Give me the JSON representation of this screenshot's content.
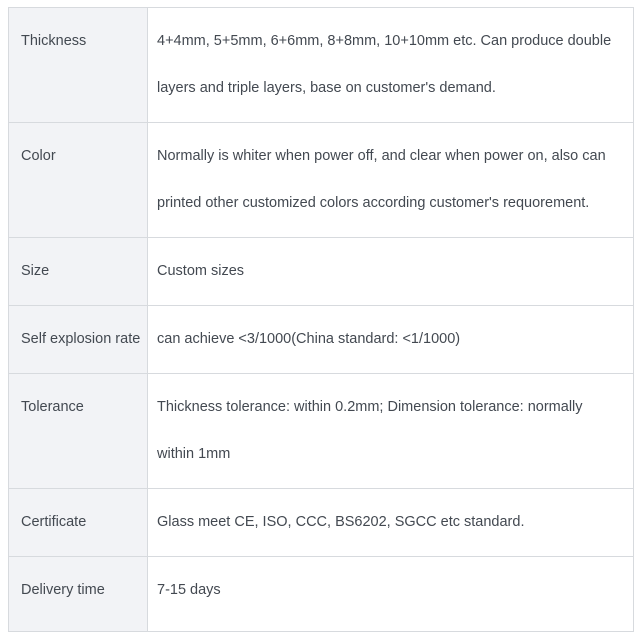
{
  "page": {
    "kind": "product-specification-table"
  },
  "colors": {
    "label_cell_bg": "#f2f3f6",
    "border": "#d7dade",
    "text": "#434951",
    "page_bg": "#ffffff"
  },
  "spec_table": {
    "rows": [
      {
        "label": "Thickness",
        "value": "4+4mm, 5+5mm, 6+6mm, 8+8mm, 10+10mm etc. Can produce double layers and triple layers, base on customer's demand."
      },
      {
        "label": "Color",
        "value": "Normally is whiter when power off, and clear when power on, also can printed other customized colors according customer's requorement."
      },
      {
        "label": "Size",
        "value": "Custom sizes"
      },
      {
        "label": "Self explosion rate",
        "value": "can achieve <3/1000(China standard: <1/1000)"
      },
      {
        "label": "Tolerance",
        "value": "Thickness tolerance: within 0.2mm; Dimension tolerance: normally within 1mm"
      },
      {
        "label": "Certificate",
        "value": "Glass meet CE, ISO, CCC, BS6202, SGCC etc standard."
      },
      {
        "label": "Delivery time",
        "value": "7-15 days"
      }
    ]
  }
}
